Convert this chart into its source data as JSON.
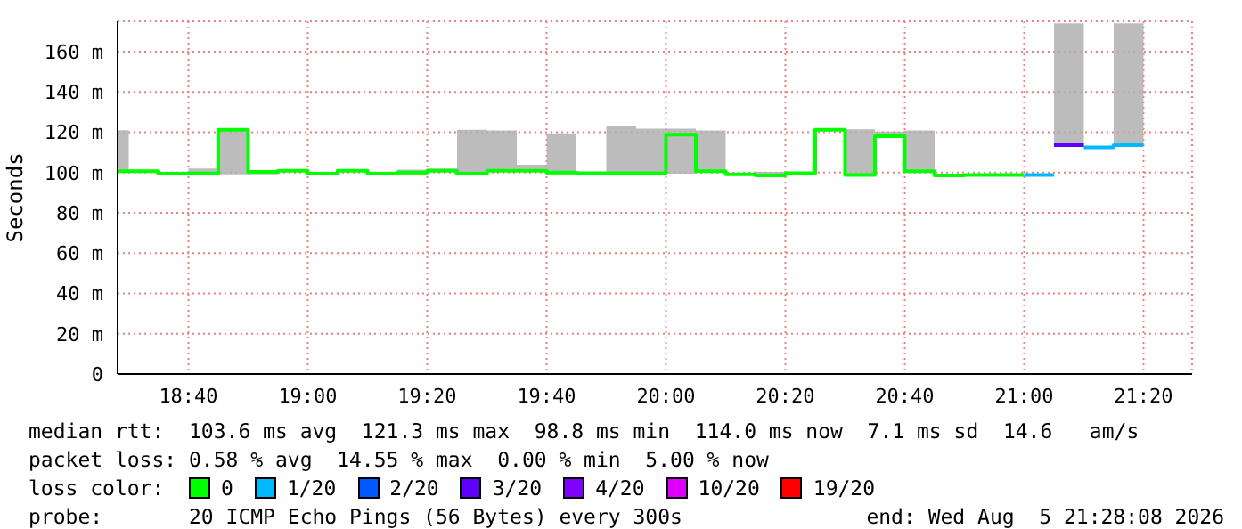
{
  "chart_data": {
    "type": "line",
    "ylabel": "Seconds",
    "legend_title": "loss color:",
    "legend": "bottom",
    "grid": true,
    "xlim": [
      18.4689,
      21.4689
    ],
    "xticks": [
      {
        "value": 18.6667,
        "label": "18:40"
      },
      {
        "value": 19,
        "label": "19:00"
      },
      {
        "value": 19.3333,
        "label": "19:20"
      },
      {
        "value": 19.6667,
        "label": "19:40"
      },
      {
        "value": 20,
        "label": "20:00"
      },
      {
        "value": 20.3333,
        "label": "20:20"
      },
      {
        "value": 20.6667,
        "label": "20:40"
      },
      {
        "value": 21,
        "label": "21:00"
      },
      {
        "value": 21.3333,
        "label": "21:20"
      }
    ],
    "ylim": [
      0,
      175
    ],
    "yticks": [
      0,
      {
        "value": 20,
        "label": "20 m"
      },
      {
        "value": 40,
        "label": "40 m"
      },
      {
        "value": 60,
        "label": "60 m"
      },
      {
        "value": 80,
        "label": "80 m"
      },
      {
        "value": 100,
        "label": "100 m"
      },
      {
        "value": 120,
        "label": "120 m"
      },
      {
        "value": 140,
        "label": "140 m"
      },
      {
        "value": 160,
        "label": "160 m"
      }
    ],
    "series": [
      {
        "name": "0",
        "color": "#00ff00",
        "x": [
          18.4689,
          18.5,
          18.5,
          18.5833,
          18.5833,
          18.6667,
          18.6667,
          18.75,
          18.75,
          18.8333,
          18.8333,
          18.9167,
          18.9167,
          19.0,
          19.0,
          19.0833,
          19.0833,
          19.1667,
          19.1667,
          19.25,
          19.25,
          19.3333,
          19.3333,
          19.4167,
          19.4167,
          19.5,
          19.5,
          19.5833,
          19.5833,
          19.6667,
          19.6667,
          19.75,
          19.75,
          19.8333,
          19.8333,
          19.9167,
          19.9167,
          20.0,
          20.0,
          20.0833,
          20.0833,
          20.1667,
          20.1667,
          20.25,
          20.25,
          20.3333,
          20.3333,
          20.4167,
          20.4167,
          20.5,
          20.5,
          20.5833,
          20.5833,
          20.6667,
          20.6667,
          20.75,
          20.75,
          20.8333,
          20.8333,
          20.9167,
          20.9167,
          21.0
        ],
        "values": [
          100.6,
          100.6,
          100.6,
          100.6,
          99.4,
          99.4,
          99.5,
          99.5,
          121.2,
          121.2,
          100.3,
          100.3,
          100.9,
          100.9,
          99.4,
          99.4,
          100.9,
          100.9,
          99.4,
          99.4,
          100,
          100,
          100.9,
          100.9,
          99.4,
          99.4,
          100.9,
          100.9,
          100.9,
          100.9,
          100,
          100,
          99.7,
          99.7,
          99.7,
          99.7,
          99.7,
          99.7,
          118.8,
          118.8,
          100.6,
          100.6,
          99.1,
          99.1,
          98.6,
          98.6,
          99.7,
          99.7,
          121.2,
          121.2,
          98.8,
          98.8,
          118,
          118,
          100.6,
          100.6,
          98.6,
          98.6,
          98.8,
          98.8,
          98.8,
          98.8
        ],
        "lower": [
          100.6,
          100.6,
          null,
          null,
          99.4,
          99.4,
          99,
          99,
          99.1,
          99.1,
          99.1,
          99.1,
          null,
          null,
          null,
          null,
          null,
          null,
          null,
          null,
          98.9,
          98.9,
          100.3,
          100.3,
          99.4,
          99.4,
          100.9,
          100.9,
          100.9,
          100.9,
          99.1,
          99.1,
          null,
          null,
          99.7,
          99.7,
          99.1,
          99.1,
          99.4,
          99.4,
          100.6,
          100.6,
          null,
          null,
          98.6,
          98.6,
          null,
          null,
          null,
          null,
          98.8,
          98.8,
          118,
          118,
          100.6,
          100.6,
          null,
          null,
          null,
          null,
          null,
          null
        ],
        "upper": [
          121,
          121,
          null,
          null,
          100.3,
          100.3,
          102,
          102,
          121.2,
          121.2,
          101.2,
          101.2,
          null,
          null,
          null,
          null,
          null,
          null,
          null,
          null,
          101.4,
          101.4,
          102,
          102,
          121.2,
          121.2,
          120.9,
          120.9,
          103.8,
          103.8,
          119.4,
          119.4,
          null,
          null,
          123.2,
          123.2,
          121.7,
          121.7,
          121.7,
          121.7,
          120.9,
          120.9,
          null,
          null,
          100.3,
          100.3,
          null,
          null,
          null,
          null,
          121.4,
          121.4,
          120.3,
          120.3,
          120.9,
          120.9,
          null,
          null,
          null,
          null,
          null,
          null
        ]
      },
      {
        "name": "1/20",
        "color": "#00b8ff",
        "x": [
          21.0,
          21.0833,
          21.125,
          21.1667,
          21.25,
          21.25,
          21.3333
        ],
        "values": [
          98.8,
          98.8,
          null,
          112.5,
          112.5,
          113.6,
          113.6
        ],
        "lower": [
          null,
          null,
          null,
          null,
          null,
          113.6,
          113.6
        ],
        "upper": [
          null,
          null,
          null,
          null,
          null,
          174,
          174
        ]
      },
      {
        "name": "2/20",
        "color": "#0059ff"
      },
      {
        "name": "3/20",
        "color": "#5e00ff",
        "x": [
          21.0833,
          21.1667
        ],
        "values": [
          113.6,
          113.6
        ],
        "lower": [
          113.6,
          113.6
        ],
        "upper": [
          174,
          174
        ]
      },
      {
        "name": "4/20",
        "color": "#7e00ff"
      },
      {
        "name": "10/20",
        "color": "#dd00ff"
      },
      {
        "name": "19/20",
        "color": "#ff0000"
      }
    ],
    "annotations": [
      "median rtt:  103.6 ms avg  121.3 ms max  98.8 ms min  114.0 ms now  7.1 ms sd  14.6   am/s",
      "packet loss: 0.58 % avg  14.55 % max  0.00 % min  5.00 % now",
      "probe:       20 ICMP Echo Pings (56 Bytes) every 300s",
      "end: Wed Aug  5 21:28:08 2026"
    ]
  }
}
